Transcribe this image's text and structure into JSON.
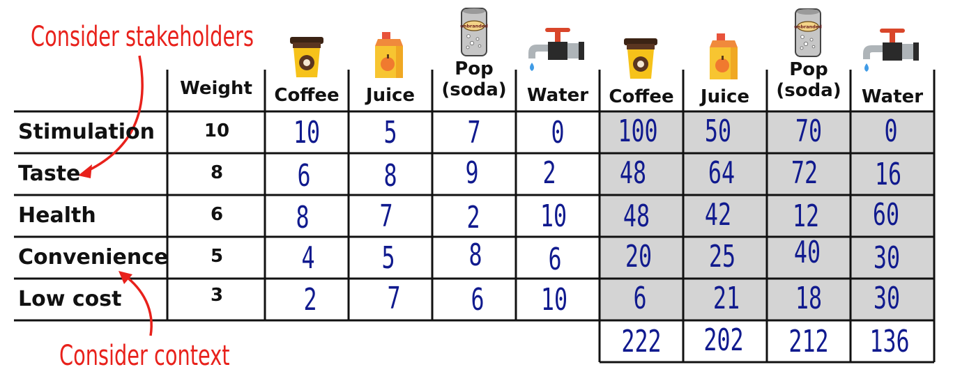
{
  "annotations": {
    "top": "Consider stakeholders",
    "bottom": "Consider context"
  },
  "headers": {
    "weight": "Weight",
    "left": [
      {
        "label": "Coffee",
        "icon": "coffee-cup-icon"
      },
      {
        "label": "Juice",
        "icon": "juice-carton-icon"
      },
      {
        "label": "Pop\n(soda)",
        "icon": "soda-can-icon"
      },
      {
        "label": "Water",
        "icon": "water-tap-icon"
      }
    ],
    "right": [
      {
        "label": "Coffee",
        "icon": "coffee-cup-icon"
      },
      {
        "label": "Juice",
        "icon": "juice-carton-icon"
      },
      {
        "label": "Pop\n(soda)",
        "icon": "soda-can-icon"
      },
      {
        "label": "Water",
        "icon": "water-tap-icon"
      }
    ],
    "can_label": "unbranded"
  },
  "rows": [
    {
      "criterion": "Stimulation",
      "weight": "10",
      "scores": [
        "10",
        "5",
        "7",
        "0"
      ],
      "weighted": [
        "100",
        "50",
        "70",
        "0"
      ]
    },
    {
      "criterion": "Taste",
      "weight": "8",
      "scores": [
        "6",
        "8",
        "9",
        "2"
      ],
      "weighted": [
        "48",
        "64",
        "72",
        "16"
      ]
    },
    {
      "criterion": "Health",
      "weight": "6",
      "scores": [
        "8",
        "7",
        "2",
        "10"
      ],
      "weighted": [
        "48",
        "42",
        "12",
        "60"
      ]
    },
    {
      "criterion": "Convenience",
      "weight": "5",
      "scores": [
        "4",
        "5",
        "8",
        "6"
      ],
      "weighted": [
        "20",
        "25",
        "40",
        "30"
      ]
    },
    {
      "criterion": "Low cost",
      "weight": "3",
      "scores": [
        "2",
        "7",
        "6",
        "10"
      ],
      "weighted": [
        "6",
        "21",
        "18",
        "30"
      ]
    }
  ],
  "totals": [
    "222",
    "202",
    "212",
    "136"
  ],
  "colors": {
    "ink_blue": "#101a8e",
    "annotation_red": "#e8211b",
    "shade_grey": "#d4d4d4",
    "grid": "#111111"
  }
}
